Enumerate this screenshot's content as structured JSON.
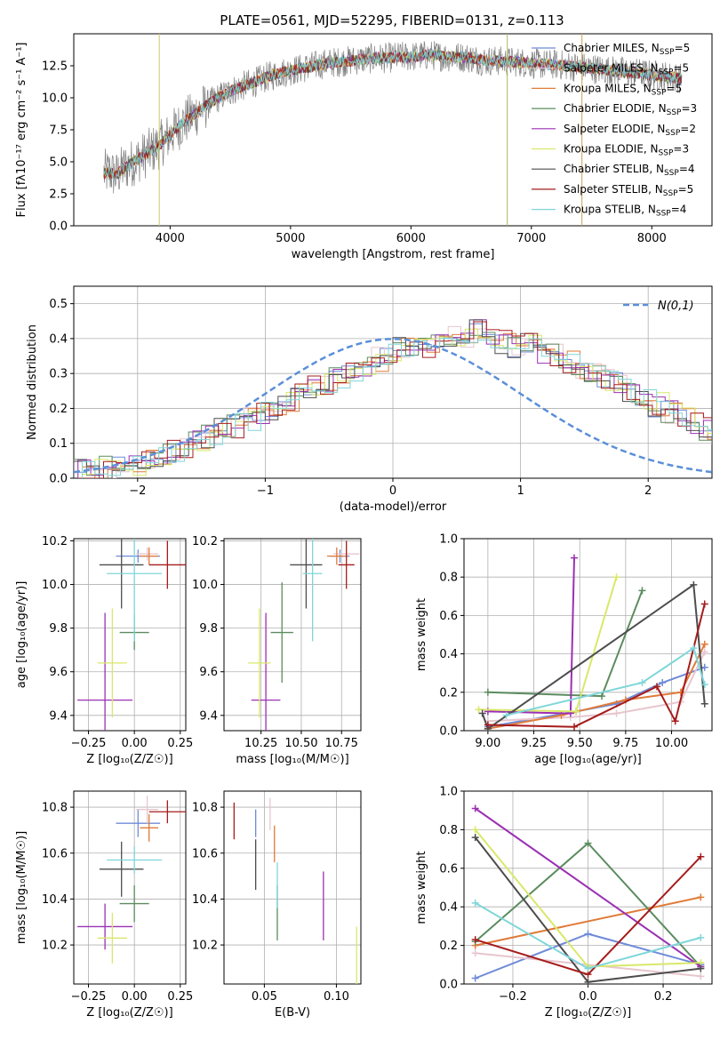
{
  "figure": {
    "title": "PLATE=0561, MJD=52295, FIBERID=0131, z=0.113"
  },
  "models": [
    {
      "name": "Chabrier MILES",
      "nssp": "5",
      "color": "#6f8bd8"
    },
    {
      "name": "Salpeter MILES",
      "nssp": "5",
      "color": "#e7c6ce"
    },
    {
      "name": "Kroupa MILES",
      "nssp": "5",
      "color": "#e07b39"
    },
    {
      "name": "Chabrier ELODIE",
      "nssp": "3",
      "color": "#5b8c5f"
    },
    {
      "name": "Salpeter ELODIE",
      "nssp": "2",
      "color": "#9b30b3"
    },
    {
      "name": "Kroupa ELODIE",
      "nssp": "3",
      "color": "#d9e86a"
    },
    {
      "name": "Chabrier STELIB",
      "nssp": "4",
      "color": "#4d4d4d"
    },
    {
      "name": "Salpeter STELIB",
      "nssp": "5",
      "color": "#a61c1c"
    },
    {
      "name": "Kroupa STELIB",
      "nssp": "4",
      "color": "#7fd6d9"
    }
  ],
  "chart_data": [
    {
      "type": "line",
      "id": "spectrum",
      "xlabel": "wavelength [Angstrom, rest frame]",
      "ylabel": "Flux [fλ10⁻¹⁷ erg cm⁻² s⁻¹ A⁻¹]",
      "xlim": [
        3200,
        8500
      ],
      "ylim": [
        0,
        15
      ],
      "xticks": [
        "4000",
        "5000",
        "6000",
        "7000",
        "8000"
      ],
      "yticks": [
        "0.0",
        "2.5",
        "5.0",
        "7.5",
        "10.0",
        "12.5"
      ],
      "legend": "top-right",
      "x": [
        3450,
        3500,
        3550,
        3600,
        3700,
        3800,
        3900,
        4000,
        4100,
        4200,
        4300,
        4400,
        4500,
        4600,
        4700,
        4800,
        4900,
        5000,
        5100,
        5200,
        5300,
        5400,
        5500,
        5600,
        5700,
        5800,
        5900,
        6000,
        6100,
        6200,
        6300,
        6400,
        6500,
        6600,
        6700,
        6800,
        6900,
        7000,
        7100,
        7200,
        7300,
        7400,
        7500,
        7600,
        7700,
        7800,
        7900,
        8000,
        8100,
        8200,
        8250
      ],
      "y": [
        4.1,
        4.2,
        3.9,
        4.4,
        5.0,
        5.6,
        6.2,
        7.1,
        8.0,
        8.7,
        9.4,
        10.0,
        10.5,
        10.9,
        11.2,
        11.6,
        11.9,
        12.1,
        12.3,
        12.5,
        12.7,
        12.8,
        12.9,
        13.0,
        13.1,
        13.1,
        13.2,
        13.2,
        13.3,
        13.3,
        13.2,
        13.2,
        13.1,
        12.9,
        12.9,
        12.8,
        12.8,
        12.7,
        12.6,
        12.6,
        12.5,
        12.4,
        12.3,
        12.2,
        12.1,
        12.0,
        11.9,
        11.8,
        11.7,
        11.6,
        11.5
      ]
    },
    {
      "type": "bar",
      "id": "residuals",
      "xlabel": "(data-model)/error",
      "ylabel": "Normed distribution",
      "xlim": [
        -2.5,
        2.5
      ],
      "ylim": [
        0,
        0.55
      ],
      "xticks": [
        "−2",
        "−1",
        "0",
        "1",
        "2"
      ],
      "yticks": [
        "0.0",
        "0.1",
        "0.2",
        "0.3",
        "0.4",
        "0.5"
      ],
      "legend": "top-right",
      "reference_label": "N(0,1)",
      "bin_width": 0.1,
      "bins_start": -2.5,
      "values": [
        0.02,
        0.02,
        0.03,
        0.03,
        0.04,
        0.05,
        0.06,
        0.08,
        0.09,
        0.11,
        0.12,
        0.14,
        0.15,
        0.17,
        0.19,
        0.2,
        0.22,
        0.24,
        0.26,
        0.27,
        0.29,
        0.31,
        0.32,
        0.34,
        0.35,
        0.37,
        0.38,
        0.38,
        0.39,
        0.4,
        0.4,
        0.42,
        0.4,
        0.39,
        0.38,
        0.38,
        0.36,
        0.35,
        0.33,
        0.32,
        0.3,
        0.28,
        0.27,
        0.25,
        0.23,
        0.21,
        0.19,
        0.18,
        0.16,
        0.14,
        0.13,
        0.11,
        0.1,
        0.09,
        0.07,
        0.06,
        0.05,
        0.04,
        0.04,
        0.03,
        0.03,
        0.02,
        0.02,
        0.02,
        0.02,
        0.02,
        0.02,
        0.02,
        0.02,
        0.02
      ],
      "line_color": "#5b8fd8"
    },
    {
      "type": "scatter",
      "id": "age-vs-z",
      "xlabel": "Z [log₁₀(Z/Z☉)]",
      "ylabel": "age  [log₁₀(age/yr)]",
      "xlim": [
        -0.33,
        0.28
      ],
      "ylim": [
        9.33,
        10.21
      ],
      "xticks": [
        "−0.25",
        "0.00",
        "0.25"
      ],
      "yticks": [
        "9.4",
        "9.6",
        "9.8",
        "10.0",
        "10.2"
      ],
      "points": [
        {
          "x": 0.02,
          "y": 10.13,
          "ex": 0.12,
          "ey": 0.03
        },
        {
          "x": 0.07,
          "y": 10.14,
          "ex": 0.06,
          "ey": 0.03
        },
        {
          "x": 0.08,
          "y": 10.13,
          "ex": 0.05,
          "ey": 0.04
        },
        {
          "x": -0.0,
          "y": 9.78,
          "ex": 0.08,
          "ey": 0.08
        },
        {
          "x": -0.16,
          "y": 9.47,
          "ex": 0.15,
          "ey": 0.4
        },
        {
          "x": -0.12,
          "y": 9.64,
          "ex": 0.08,
          "ey": 0.25
        },
        {
          "x": -0.07,
          "y": 10.09,
          "ex": 0.12,
          "ey": 0.2
        },
        {
          "x": 0.18,
          "y": 10.09,
          "ex": 0.1,
          "ey": 0.11
        },
        {
          "x": 0.0,
          "y": 10.05,
          "ex": 0.15,
          "ey": 0.31
        }
      ]
    },
    {
      "type": "scatter",
      "id": "age-vs-mass",
      "xlabel": "mass [log₁₀(M/M☉)]",
      "ylabel": "",
      "xlim": [
        10.02,
        10.87
      ],
      "ylim": [
        9.33,
        10.21
      ],
      "xticks": [
        "10.25",
        "10.50",
        "10.75"
      ],
      "yticks": [
        "9.4",
        "9.6",
        "9.8",
        "10.0",
        "10.2"
      ],
      "points": [
        {
          "x": 10.74,
          "y": 10.13,
          "ex": 0.06,
          "ey": 0.03
        },
        {
          "x": 10.78,
          "y": 10.14,
          "ex": 0.08,
          "ey": 0.03
        },
        {
          "x": 10.72,
          "y": 10.13,
          "ex": 0.06,
          "ey": 0.04
        },
        {
          "x": 10.38,
          "y": 9.78,
          "ex": 0.07,
          "ey": 0.23
        },
        {
          "x": 10.28,
          "y": 9.47,
          "ex": 0.09,
          "ey": 0.4
        },
        {
          "x": 10.24,
          "y": 9.64,
          "ex": 0.07,
          "ey": 0.25
        },
        {
          "x": 10.53,
          "y": 10.09,
          "ex": 0.1,
          "ey": 0.2
        },
        {
          "x": 10.78,
          "y": 10.09,
          "ex": 0.05,
          "ey": 0.11
        },
        {
          "x": 10.57,
          "y": 10.05,
          "ex": 0.06,
          "ey": 0.31
        }
      ]
    },
    {
      "type": "line",
      "id": "weight-vs-age",
      "xlabel": "age  [log₁₀(age/yr)]",
      "ylabel": "mass weight",
      "xlim": [
        8.87,
        10.22
      ],
      "ylim": [
        0,
        1
      ],
      "xticks": [
        "9.00",
        "9.25",
        "9.50",
        "9.75",
        "10.00"
      ],
      "yticks": [
        "0.0",
        "0.2",
        "0.4",
        "0.6",
        "0.8",
        "1.0"
      ],
      "series": [
        {
          "x": [
            9.0,
            9.48,
            9.7,
            9.95,
            10.18
          ],
          "y": [
            0.02,
            0.1,
            0.14,
            0.25,
            0.33
          ]
        },
        {
          "x": [
            9.0,
            9.45,
            9.7,
            10.05,
            10.18
          ],
          "y": [
            0.05,
            0.07,
            0.09,
            0.15,
            0.41
          ]
        },
        {
          "x": [
            9.0,
            9.4,
            9.75,
            10.05,
            10.18
          ],
          "y": [
            0.01,
            0.08,
            0.16,
            0.2,
            0.45
          ]
        },
        {
          "x": [
            9.0,
            9.62,
            9.84
          ],
          "y": [
            0.2,
            0.18,
            0.73
          ]
        },
        {
          "x": [
            9.0,
            9.45,
            9.47
          ],
          "y": [
            0.1,
            0.09,
            0.9
          ]
        },
        {
          "x": [
            8.95,
            9.48,
            9.7
          ],
          "y": [
            0.11,
            0.1,
            0.8
          ]
        },
        {
          "x": [
            8.97,
            9.0,
            10.12,
            10.18
          ],
          "y": [
            0.09,
            0.01,
            0.76,
            0.14
          ]
        },
        {
          "x": [
            9.0,
            9.47,
            9.92,
            10.02,
            10.18
          ],
          "y": [
            0.03,
            0.02,
            0.23,
            0.05,
            0.66
          ]
        },
        {
          "x": [
            9.1,
            9.84,
            10.12,
            10.18
          ],
          "y": [
            0.08,
            0.25,
            0.43,
            0.24
          ]
        }
      ]
    },
    {
      "type": "scatter",
      "id": "mass-vs-z",
      "xlabel": "Z [log₁₀(Z/Z☉)]",
      "ylabel": "mass [log₁₀(M/M☉)]",
      "xlim": [
        -0.33,
        0.28
      ],
      "ylim": [
        10.03,
        10.87
      ],
      "xticks": [
        "−0.25",
        "0.00",
        "0.25"
      ],
      "yticks": [
        "10.2",
        "10.4",
        "10.6",
        "10.8"
      ],
      "points": [
        {
          "x": 0.02,
          "y": 10.73,
          "ex": 0.12,
          "ey": 0.06
        },
        {
          "x": 0.07,
          "y": 10.79,
          "ex": 0.06,
          "ey": 0.06
        },
        {
          "x": 0.08,
          "y": 10.71,
          "ex": 0.05,
          "ey": 0.06
        },
        {
          "x": -0.0,
          "y": 10.38,
          "ex": 0.08,
          "ey": 0.08
        },
        {
          "x": -0.16,
          "y": 10.28,
          "ex": 0.15,
          "ey": 0.1
        },
        {
          "x": -0.12,
          "y": 10.23,
          "ex": 0.08,
          "ey": 0.11
        },
        {
          "x": -0.07,
          "y": 10.53,
          "ex": 0.12,
          "ey": 0.12
        },
        {
          "x": 0.18,
          "y": 10.78,
          "ex": 0.1,
          "ey": 0.05
        },
        {
          "x": 0.0,
          "y": 10.57,
          "ex": 0.15,
          "ey": 0.06
        }
      ]
    },
    {
      "type": "scatter",
      "id": "mass-vs-ebv",
      "xlabel": "E(B-V)",
      "ylabel": "",
      "xlim": [
        0.022,
        0.117
      ],
      "ylim": [
        10.03,
        10.87
      ],
      "xticks": [
        "0.05",
        "0.10"
      ],
      "yticks": [
        "10.2",
        "10.4",
        "10.6",
        "10.8"
      ],
      "points": [
        {
          "x": 0.044,
          "y": 10.73,
          "ey": 0.06
        },
        {
          "x": 0.054,
          "y": 10.77,
          "ey": 0.07
        },
        {
          "x": 0.057,
          "y": 10.64,
          "ey": 0.08
        },
        {
          "x": 0.059,
          "y": 10.34,
          "ey": 0.12
        },
        {
          "x": 0.091,
          "y": 10.37,
          "ey": 0.15
        },
        {
          "x": 0.114,
          "y": 10.1,
          "ey": 0.18
        },
        {
          "x": 0.044,
          "y": 10.55,
          "ey": 0.11
        },
        {
          "x": 0.029,
          "y": 10.74,
          "ey": 0.08
        },
        {
          "x": 0.059,
          "y": 10.46,
          "ey": 0.1
        }
      ]
    },
    {
      "type": "line",
      "id": "weight-vs-z",
      "xlabel": "Z [log₁₀(Z/Z☉)]",
      "ylabel": "mass weight",
      "xlim": [
        -0.33,
        0.33
      ],
      "ylim": [
        0,
        1
      ],
      "xticks": [
        "−0.2",
        "0.0",
        "0.2"
      ],
      "yticks": [
        "0.0",
        "0.2",
        "0.4",
        "0.6",
        "0.8",
        "1.0"
      ],
      "series": [
        {
          "x": [
            -0.3,
            0.0,
            0.3
          ],
          "y": [
            0.03,
            0.26,
            0.1
          ]
        },
        {
          "x": [
            -0.3,
            0.3
          ],
          "y": [
            0.16,
            0.04
          ]
        },
        {
          "x": [
            -0.3,
            0.3
          ],
          "y": [
            0.2,
            0.45
          ]
        },
        {
          "x": [
            -0.3,
            0.0,
            0.3
          ],
          "y": [
            0.22,
            0.73,
            0.09
          ]
        },
        {
          "x": [
            -0.3,
            0.3
          ],
          "y": [
            0.91,
            0.09
          ]
        },
        {
          "x": [
            -0.3,
            0.0,
            0.3
          ],
          "y": [
            0.8,
            0.09,
            0.11
          ]
        },
        {
          "x": [
            -0.3,
            0.0,
            0.3
          ],
          "y": [
            0.76,
            0.01,
            0.08
          ]
        },
        {
          "x": [
            -0.3,
            0.0,
            0.3
          ],
          "y": [
            0.23,
            0.05,
            0.66
          ]
        },
        {
          "x": [
            -0.3,
            0.0,
            0.3
          ],
          "y": [
            0.42,
            0.08,
            0.24
          ]
        }
      ]
    }
  ]
}
